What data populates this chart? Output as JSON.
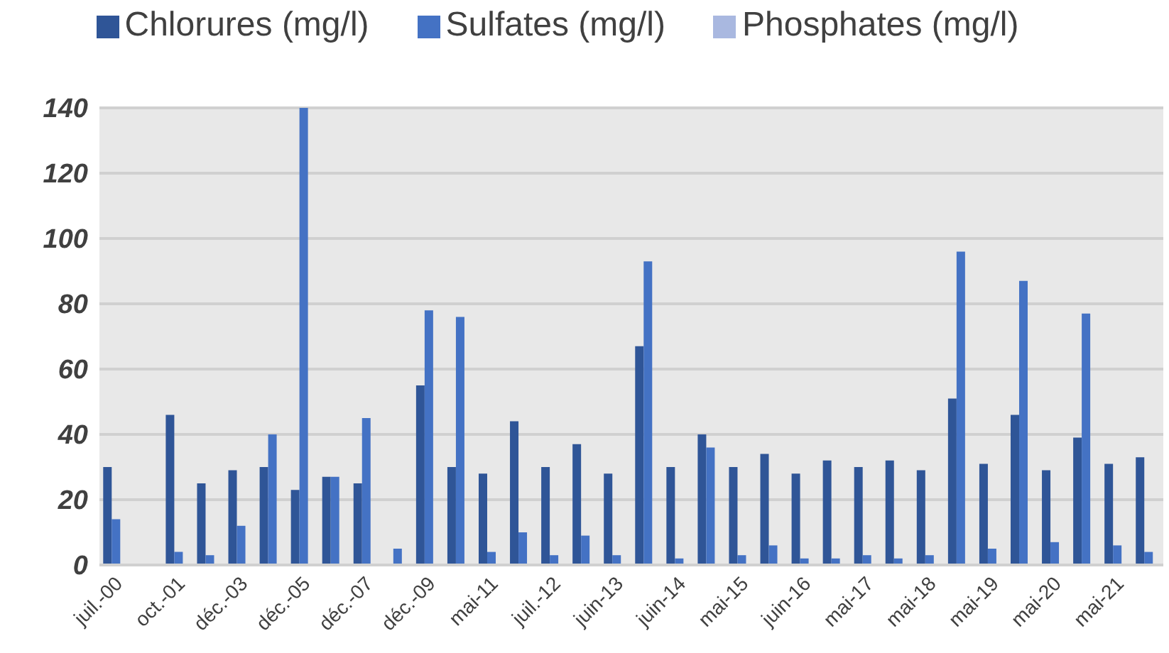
{
  "chart_data": {
    "type": "bar",
    "categories": [
      "juil.-00",
      null,
      "oct.-01",
      null,
      "déc.-03",
      null,
      "déc.-05",
      null,
      "déc.-07",
      null,
      "déc.-09",
      null,
      "mai-11",
      null,
      "juil.-12",
      null,
      "juin-13",
      null,
      "juin-14",
      null,
      "mai-15",
      null,
      "juin-16",
      null,
      "mai-17",
      null,
      "mai-18",
      null,
      "mai-19",
      null,
      "mai-20",
      null,
      "mai-21",
      null
    ],
    "series": [
      {
        "name": "Chlorures (mg/l)",
        "color": "#2f5597",
        "values": [
          30,
          null,
          46,
          25,
          29,
          30,
          23,
          27,
          25,
          null,
          55,
          30,
          28,
          44,
          30,
          37,
          28,
          67,
          30,
          40,
          30,
          34,
          28,
          32,
          30,
          32,
          29,
          51,
          31,
          46,
          29,
          39,
          31,
          33
        ]
      },
      {
        "name": "Sulfates (mg/l)",
        "color": "#4472c4",
        "values": [
          14,
          null,
          4,
          3,
          12,
          40,
          140,
          27,
          45,
          5,
          78,
          76,
          4,
          10,
          3,
          9,
          3,
          93,
          2,
          36,
          3,
          6,
          2,
          2,
          3,
          2,
          3,
          96,
          5,
          87,
          7,
          77,
          6,
          4
        ]
      },
      {
        "name": "Phosphates (mg/l)",
        "color": "#a9b8e0",
        "values": [
          null,
          null,
          null,
          null,
          null,
          null,
          null,
          null,
          null,
          null,
          null,
          null,
          null,
          null,
          null,
          null,
          null,
          null,
          null,
          null,
          null,
          null,
          null,
          null,
          null,
          null,
          null,
          null,
          null,
          null,
          null,
          null,
          null,
          null
        ]
      }
    ],
    "ylim": [
      0,
      140
    ],
    "yticks": [
      0,
      20,
      40,
      60,
      80,
      100,
      120,
      140
    ],
    "grid": "y",
    "legend": "top"
  }
}
